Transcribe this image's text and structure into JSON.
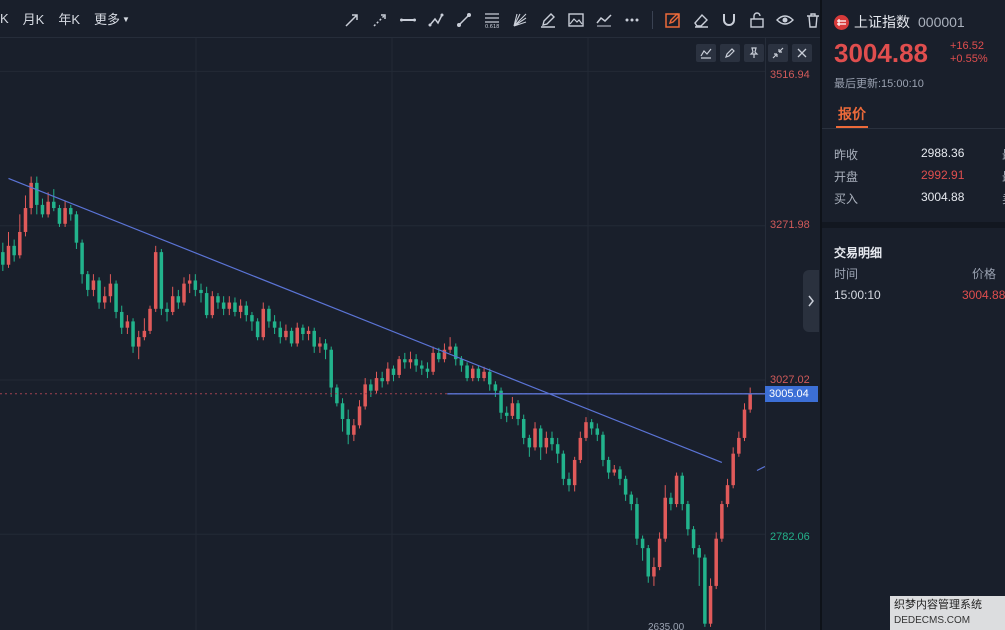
{
  "toolbar": {
    "periods": [
      "K",
      "月K",
      "年K",
      "更多"
    ],
    "tools": [
      "arrow-ray-icon",
      "dashed-ray-icon",
      "horizontal-line-icon",
      "polyline-icon",
      "segment-icon",
      "fibonacci-icon",
      "fan-icon",
      "pencil-icon",
      "image-icon",
      "curve-icon",
      "more-dots-icon",
      "draw-mode-icon",
      "eraser-icon",
      "magnet-icon",
      "unlock-icon",
      "eye-icon",
      "trash-icon"
    ]
  },
  "chart": {
    "y_labels": [
      "3516.94",
      "3271.98",
      "3027.02",
      "2782.06"
    ],
    "current_price_tag": "3005.04",
    "low_label": "2635.00",
    "y_ticks": [
      3516.94,
      3271.98,
      3027.02,
      2782.06
    ],
    "current_price": 3005.04
  },
  "chart_data": {
    "type": "candlestick",
    "ylim": [
      2630,
      3570
    ],
    "candles": [
      [
        3230,
        3210,
        3245,
        3200
      ],
      [
        3210,
        3240,
        3262,
        3205
      ],
      [
        3240,
        3225,
        3250,
        3215
      ],
      [
        3225,
        3262,
        3290,
        3220
      ],
      [
        3262,
        3300,
        3320,
        3255
      ],
      [
        3300,
        3340,
        3350,
        3290
      ],
      [
        3340,
        3305,
        3350,
        3290
      ],
      [
        3305,
        3290,
        3315,
        3285
      ],
      [
        3290,
        3310,
        3325,
        3285
      ],
      [
        3310,
        3300,
        3330,
        3295
      ],
      [
        3300,
        3275,
        3305,
        3270
      ],
      [
        3275,
        3300,
        3312,
        3270
      ],
      [
        3300,
        3290,
        3305,
        3280
      ],
      [
        3290,
        3245,
        3295,
        3235
      ],
      [
        3245,
        3195,
        3250,
        3180
      ],
      [
        3195,
        3170,
        3200,
        3160
      ],
      [
        3170,
        3185,
        3195,
        3160
      ],
      [
        3185,
        3150,
        3190,
        3140
      ],
      [
        3150,
        3160,
        3175,
        3140
      ],
      [
        3160,
        3180,
        3195,
        3150
      ],
      [
        3180,
        3135,
        3185,
        3125
      ],
      [
        3135,
        3110,
        3145,
        3100
      ],
      [
        3110,
        3120,
        3130,
        3100
      ],
      [
        3120,
        3080,
        3125,
        3070
      ],
      [
        3080,
        3095,
        3105,
        3060
      ],
      [
        3095,
        3105,
        3125,
        3090
      ],
      [
        3105,
        3140,
        3145,
        3100
      ],
      [
        3140,
        3230,
        3240,
        3135
      ],
      [
        3230,
        3140,
        3235,
        3130
      ],
      [
        3140,
        3135,
        3150,
        3120
      ],
      [
        3135,
        3160,
        3175,
        3130
      ],
      [
        3160,
        3150,
        3170,
        3140
      ],
      [
        3150,
        3180,
        3190,
        3145
      ],
      [
        3180,
        3185,
        3195,
        3165
      ],
      [
        3185,
        3170,
        3195,
        3160
      ],
      [
        3170,
        3165,
        3180,
        3150
      ],
      [
        3165,
        3130,
        3175,
        3125
      ],
      [
        3130,
        3160,
        3168,
        3125
      ],
      [
        3160,
        3150,
        3165,
        3140
      ],
      [
        3150,
        3140,
        3160,
        3130
      ],
      [
        3140,
        3150,
        3160,
        3130
      ],
      [
        3150,
        3135,
        3158,
        3128
      ],
      [
        3135,
        3145,
        3155,
        3125
      ],
      [
        3145,
        3130,
        3152,
        3120
      ],
      [
        3130,
        3120,
        3135,
        3105
      ],
      [
        3120,
        3095,
        3125,
        3090
      ],
      [
        3095,
        3140,
        3150,
        3090
      ],
      [
        3140,
        3120,
        3145,
        3110
      ],
      [
        3120,
        3110,
        3130,
        3100
      ],
      [
        3110,
        3095,
        3120,
        3085
      ],
      [
        3095,
        3105,
        3115,
        3090
      ],
      [
        3105,
        3085,
        3110,
        3080
      ],
      [
        3085,
        3110,
        3118,
        3080
      ],
      [
        3110,
        3100,
        3115,
        3090
      ],
      [
        3100,
        3105,
        3112,
        3090
      ],
      [
        3105,
        3080,
        3110,
        3070
      ],
      [
        3080,
        3085,
        3095,
        3070
      ],
      [
        3085,
        3075,
        3092,
        3060
      ],
      [
        3075,
        3015,
        3080,
        3000
      ],
      [
        3015,
        2990,
        3020,
        2985
      ],
      [
        2990,
        2965,
        2998,
        2945
      ],
      [
        2965,
        2940,
        2980,
        2925
      ],
      [
        2940,
        2955,
        2965,
        2930
      ],
      [
        2955,
        2985,
        2995,
        2950
      ],
      [
        2985,
        3020,
        3030,
        2980
      ],
      [
        3020,
        3010,
        3028,
        3000
      ],
      [
        3010,
        3030,
        3040,
        3005
      ],
      [
        3030,
        3025,
        3040,
        3015
      ],
      [
        3025,
        3045,
        3055,
        3020
      ],
      [
        3045,
        3035,
        3050,
        3025
      ],
      [
        3035,
        3060,
        3065,
        3030
      ],
      [
        3060,
        3055,
        3070,
        3045
      ],
      [
        3055,
        3060,
        3072,
        3045
      ],
      [
        3060,
        3050,
        3068,
        3040
      ],
      [
        3050,
        3045,
        3058,
        3035
      ],
      [
        3045,
        3040,
        3055,
        3030
      ],
      [
        3040,
        3070,
        3080,
        3035
      ],
      [
        3070,
        3060,
        3078,
        3055
      ],
      [
        3060,
        3075,
        3085,
        3055
      ],
      [
        3075,
        3080,
        3095,
        3070
      ],
      [
        3080,
        3060,
        3085,
        3050
      ],
      [
        3060,
        3050,
        3065,
        3040
      ],
      [
        3050,
        3030,
        3055,
        3025
      ],
      [
        3030,
        3045,
        3050,
        3025
      ],
      [
        3045,
        3030,
        3050,
        3025
      ],
      [
        3030,
        3040,
        3048,
        3025
      ],
      [
        3040,
        3020,
        3045,
        3010
      ],
      [
        3020,
        3010,
        3025,
        3000
      ],
      [
        3010,
        2975,
        3015,
        2965
      ],
      [
        2975,
        2970,
        2985,
        2960
      ],
      [
        2970,
        2990,
        3000,
        2965
      ],
      [
        2990,
        2965,
        2995,
        2955
      ],
      [
        2965,
        2935,
        2972,
        2925
      ],
      [
        2935,
        2920,
        2940,
        2905
      ],
      [
        2920,
        2950,
        2960,
        2915
      ],
      [
        2950,
        2920,
        2955,
        2900
      ],
      [
        2920,
        2935,
        2945,
        2910
      ],
      [
        2935,
        2925,
        2945,
        2915
      ],
      [
        2925,
        2910,
        2935,
        2895
      ],
      [
        2910,
        2870,
        2915,
        2860
      ],
      [
        2870,
        2860,
        2880,
        2850
      ],
      [
        2860,
        2900,
        2905,
        2850
      ],
      [
        2900,
        2935,
        2945,
        2895
      ],
      [
        2935,
        2960,
        2968,
        2930
      ],
      [
        2960,
        2950,
        2965,
        2940
      ],
      [
        2950,
        2940,
        2958,
        2930
      ],
      [
        2940,
        2900,
        2945,
        2890
      ],
      [
        2900,
        2880,
        2905,
        2870
      ],
      [
        2880,
        2885,
        2892,
        2875
      ],
      [
        2885,
        2870,
        2890,
        2860
      ],
      [
        2870,
        2845,
        2875,
        2835
      ],
      [
        2845,
        2830,
        2850,
        2820
      ],
      [
        2830,
        2775,
        2840,
        2765
      ],
      [
        2775,
        2760,
        2780,
        2740
      ],
      [
        2760,
        2715,
        2765,
        2705
      ],
      [
        2715,
        2730,
        2745,
        2700
      ],
      [
        2730,
        2775,
        2785,
        2725
      ],
      [
        2775,
        2840,
        2860,
        2770
      ],
      [
        2840,
        2830,
        2848,
        2820
      ],
      [
        2830,
        2875,
        2880,
        2825
      ],
      [
        2875,
        2830,
        2880,
        2820
      ],
      [
        2830,
        2790,
        2835,
        2780
      ],
      [
        2790,
        2760,
        2795,
        2750
      ],
      [
        2760,
        2745,
        2765,
        2700
      ],
      [
        2745,
        2640,
        2750,
        2635
      ],
      [
        2640,
        2700,
        2712,
        2635
      ],
      [
        2700,
        2775,
        2785,
        2695
      ],
      [
        2775,
        2830,
        2835,
        2770
      ],
      [
        2830,
        2860,
        2870,
        2825
      ],
      [
        2860,
        2910,
        2920,
        2855
      ],
      [
        2910,
        2935,
        2945,
        2905
      ],
      [
        2935,
        2980,
        2990,
        2930
      ],
      [
        2980,
        3005,
        3015,
        2975
      ]
    ],
    "trendline": {
      "from": [
        1,
        3347
      ],
      "to": [
        127,
        2896
      ]
    },
    "hline": 3005.04,
    "last_dashed": 3005.04
  },
  "side": {
    "name": "上证指数",
    "code": "000001",
    "price": "3004.88",
    "change": "+16.52",
    "change_pct": "+0.55%",
    "update": "最后更新:15:00:10",
    "tab": "报价",
    "quotes": [
      {
        "label": "昨收",
        "value": "2988.36",
        "red": false,
        "extra": "最"
      },
      {
        "label": "开盘",
        "value": "2992.91",
        "red": true,
        "extra": "最"
      },
      {
        "label": "买入",
        "value": "3004.88",
        "red": false,
        "extra": "卖"
      }
    ],
    "trades_title": "交易明细",
    "th_time": "时间",
    "th_price": "价格",
    "trade_time": "15:00:10",
    "trade_price": "3004.88"
  },
  "watermark": {
    "line1": "织梦内容管理系统",
    "line2": "DEDECMS.COM"
  },
  "colors": {
    "up": "#e05a5a",
    "down": "#22b38c",
    "trend": "#5b74d6",
    "bg": "#191f2b",
    "tag": "#3c6fd6"
  }
}
